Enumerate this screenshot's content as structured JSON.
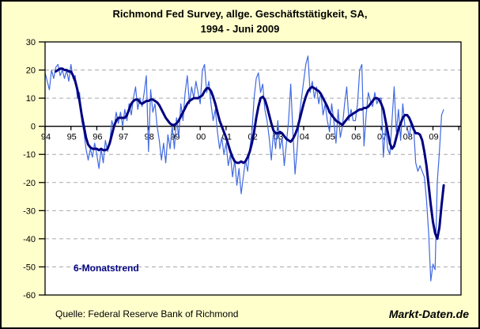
{
  "header": {
    "title_line1": "Richmond Fed Survey, allge. Geschäftstätigkeit, SA,",
    "title_line2": "1994 - Juni 2009"
  },
  "legend": {
    "trend_label": "6-Monatstrend"
  },
  "footer": {
    "source": "Quelle: Federal Reserve Bank of Richmond",
    "brand": "Markt-Daten.de"
  },
  "colors": {
    "background": "#FFFFCC",
    "plot_background": "#FFFFFF",
    "monthly_line": "#4169E1",
    "trend_line": "#000080",
    "grid": "#AAAAAA",
    "axis": "#000000"
  },
  "chart_data": {
    "type": "line",
    "title": "Richmond Fed Survey, allge. Geschäftstätigkeit, SA, 1994 - Juni 2009",
    "x_start": "1994-01",
    "x_end": "2009-06",
    "x_tick_labels": [
      "94",
      "95",
      "96",
      "97",
      "98",
      "99",
      "00",
      "01",
      "02",
      "03",
      "04",
      "05",
      "06",
      "07",
      "08",
      "09"
    ],
    "y_ticks": [
      30,
      20,
      10,
      0,
      -10,
      -20,
      -30,
      -40,
      -50,
      -60
    ],
    "ylim": [
      -60,
      30
    ],
    "grid": "horizontal-dashed",
    "legend_position": "bottom-left-inside",
    "series": [
      {
        "id": "monthly",
        "style": "thin",
        "values": [
          19,
          16,
          13,
          20,
          17,
          21,
          22,
          18,
          20,
          17,
          20,
          16,
          22,
          17,
          18,
          10,
          12,
          2,
          -2,
          -8,
          -12,
          -8,
          -11,
          -6,
          -10,
          -15,
          -8,
          -13,
          -5,
          -9,
          -6,
          2,
          -1,
          5,
          1,
          5,
          0,
          6,
          2,
          8,
          4,
          10,
          14,
          6,
          10,
          7,
          12,
          18,
          -9,
          13,
          5,
          8,
          0,
          -5,
          -12,
          -6,
          -13,
          -3,
          -8,
          0,
          -8,
          3,
          -4,
          8,
          2,
          12,
          18,
          8,
          14,
          10,
          16,
          12,
          8,
          20,
          22,
          12,
          16,
          8,
          2,
          6,
          -2,
          -8,
          -4,
          -10,
          -6,
          -14,
          -10,
          -18,
          -12,
          -21,
          -15,
          -24,
          -18,
          -12,
          -16,
          -8,
          -2,
          10,
          17,
          19,
          12,
          15,
          6,
          2,
          -4,
          -12,
          -2,
          -8,
          2,
          -8,
          -4,
          -14,
          -6,
          2,
          15,
          -2,
          -17,
          -8,
          4,
          10,
          16,
          22,
          25,
          12,
          16,
          10,
          14,
          8,
          12,
          4,
          8,
          2,
          -2,
          8,
          2,
          -6,
          6,
          -4,
          0,
          8,
          14,
          2,
          6,
          2,
          2,
          8,
          20,
          22,
          -7,
          4,
          12,
          9,
          7,
          12,
          8,
          10,
          10,
          -11,
          0,
          -8,
          -10,
          2,
          14,
          -2,
          6,
          -5,
          8,
          0,
          0,
          -4,
          2,
          0,
          -13,
          -16,
          -14,
          -16,
          -18,
          -26,
          -38,
          -55,
          -49,
          -51,
          -20,
          -9,
          4,
          6
        ]
      },
      {
        "id": "trend6",
        "label": "6-Monatstrend",
        "style": "thick",
        "values": [
          null,
          null,
          null,
          null,
          null,
          19.5,
          20,
          20.5,
          20.5,
          20,
          20,
          19.5,
          19.5,
          18,
          16,
          13,
          9,
          4,
          0,
          -4,
          -6.5,
          -7.5,
          -8,
          -8,
          -8,
          -8.5,
          -8,
          -8.5,
          -8.5,
          -8,
          -6,
          -3,
          0,
          2,
          3,
          3,
          3,
          3,
          4,
          6,
          8,
          9,
          9.5,
          9.5,
          8.5,
          8,
          8.5,
          9,
          9,
          9.5,
          9.5,
          9,
          8.5,
          7.5,
          6,
          4.5,
          3,
          2,
          1,
          0.5,
          0.5,
          1,
          2,
          3.5,
          5,
          6.5,
          8,
          9,
          9.5,
          10,
          10,
          10,
          10.5,
          11,
          12.5,
          13.5,
          13.5,
          12.5,
          10.5,
          8,
          5,
          2,
          0,
          -2,
          -4,
          -6.5,
          -9,
          -11,
          -12.5,
          -13,
          -13,
          -12.5,
          -13,
          -12.5,
          -11,
          -9,
          -6,
          -2,
          3,
          7,
          10,
          10.5,
          9.5,
          7,
          4,
          1,
          -1.5,
          -2.5,
          -2.5,
          -2,
          -2.5,
          -3.5,
          -4.5,
          -5,
          -5.5,
          -4.5,
          -3,
          -1,
          2,
          5,
          8,
          10.5,
          12.5,
          13.5,
          14,
          13.5,
          13,
          12.5,
          11.5,
          10,
          8.5,
          7,
          5,
          4,
          3,
          2,
          1.5,
          1,
          0.5,
          1.5,
          2.5,
          3.5,
          4,
          4.5,
          5,
          5.5,
          6,
          6,
          6.5,
          6.5,
          7,
          8,
          9,
          10,
          10,
          9.5,
          8,
          6,
          2,
          -2,
          -6,
          -8,
          -7,
          -4,
          -1,
          1,
          3,
          4,
          4,
          3,
          1,
          -1,
          -2.5,
          -2.5,
          -3,
          -5,
          -9,
          -14,
          -21,
          -28,
          -34,
          -38,
          -40,
          -36,
          -28,
          -21
        ]
      }
    ]
  }
}
